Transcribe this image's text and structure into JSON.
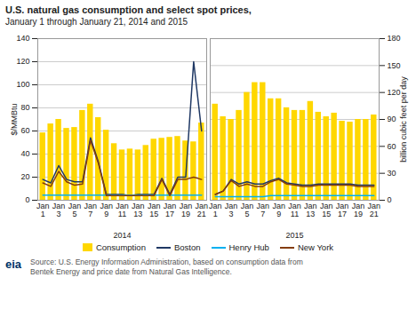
{
  "chart_data": [
    {
      "type": "bar",
      "title": "U.S. natural gas consumption and select spot prices,",
      "subtitle": "January 1 through January 21, 2014 and 2015",
      "xlabel": "2014",
      "categories": [
        "Jan 1",
        null,
        "Jan 3",
        null,
        "Jan 5",
        null,
        "Jan 7",
        null,
        "Jan 9",
        null,
        "Jan 11",
        null,
        "Jan 13",
        null,
        "Jan 15",
        null,
        "Jan 17",
        null,
        "Jan 19",
        null,
        "Jan 21"
      ],
      "ylabel": "$/MMBtu",
      "ylim": [
        0,
        140
      ],
      "yticks": [
        0,
        20,
        40,
        60,
        80,
        100,
        120,
        140
      ],
      "y2lim": [
        0,
        180
      ],
      "grid": true,
      "legend": "bottom",
      "series": [
        {
          "name": "Consumption",
          "type": "bar",
          "axis": "y2",
          "color": "#FFD700",
          "values": [
            75,
            85,
            90,
            80,
            81,
            100,
            107,
            92,
            78,
            63,
            56,
            57,
            56,
            61,
            68,
            69,
            70,
            71,
            66,
            65,
            86
          ]
        },
        {
          "name": "Boston",
          "type": "line",
          "color": "#1F3864",
          "values": [
            18,
            15,
            30,
            18,
            16,
            16,
            54,
            33,
            5,
            5,
            5,
            4,
            5,
            5,
            5,
            19,
            5,
            20,
            20,
            120,
            60
          ]
        },
        {
          "name": "Henry Hub",
          "type": "line",
          "color": "#00B0F0",
          "values": [
            4.5,
            4.5,
            4.5,
            4.5,
            4.5,
            4.5,
            4.5,
            4.5,
            4.5,
            4.5,
            4.5,
            4.5,
            4.5,
            4.5,
            4.5,
            4.5,
            4.5,
            4.5,
            4.5,
            4.5,
            4.5
          ]
        },
        {
          "name": "New York",
          "type": "line",
          "color": "#843C0C",
          "values": [
            15,
            12,
            25,
            16,
            13,
            14,
            52,
            32,
            4,
            4,
            4,
            4,
            4,
            4,
            4,
            18,
            4,
            18,
            18,
            20,
            18
          ]
        }
      ],
      "source": "Source: U.S. Energy Information Administration, based on consumption data from\nBentek Energy and price date from Natural Gas Intelligence.",
      "annotations": [
        "eia"
      ]
    },
    {
      "type": "bar",
      "xlabel": "2015",
      "categories": [
        "Jan 1",
        null,
        "Jan 3",
        null,
        "Jan 5",
        null,
        "Jan 7",
        null,
        "Jan 9",
        null,
        "Jan 11",
        null,
        "Jan 13",
        null,
        "Jan 15",
        null,
        "Jan 17",
        null,
        "Jan 19",
        null,
        "Jan 21"
      ],
      "ylim": [
        0,
        140
      ],
      "y2label": "billion cubic feet per day",
      "y2lim": [
        0,
        180
      ],
      "y2ticks": [
        0,
        30,
        60,
        90,
        120,
        150,
        180
      ],
      "grid": true,
      "series": [
        {
          "name": "Consumption",
          "type": "bar",
          "axis": "y2",
          "color": "#FFD700",
          "values": [
            107,
            93,
            90,
            100,
            120,
            131,
            131,
            113,
            113,
            103,
            100,
            100,
            110,
            98,
            93,
            97,
            88,
            87,
            90,
            90,
            95
          ]
        },
        {
          "name": "Boston",
          "type": "line",
          "color": "#1F3864",
          "values": [
            5,
            8,
            18,
            14,
            16,
            14,
            14,
            17,
            19,
            15,
            14,
            13,
            13,
            14,
            14,
            14,
            14,
            14,
            13,
            13,
            13
          ]
        },
        {
          "name": "Henry Hub",
          "type": "line",
          "color": "#00B0F0",
          "values": [
            3,
            3,
            3,
            3,
            3,
            3,
            3,
            4,
            4,
            4,
            4,
            4,
            4,
            4,
            4,
            4,
            4,
            4,
            4,
            4,
            4
          ]
        },
        {
          "name": "New York",
          "type": "line",
          "color": "#843C0C",
          "values": [
            5,
            8,
            17,
            12,
            14,
            12,
            12,
            16,
            18,
            14,
            13,
            12,
            12,
            13,
            13,
            13,
            13,
            13,
            12,
            12,
            12
          ]
        }
      ]
    }
  ]
}
